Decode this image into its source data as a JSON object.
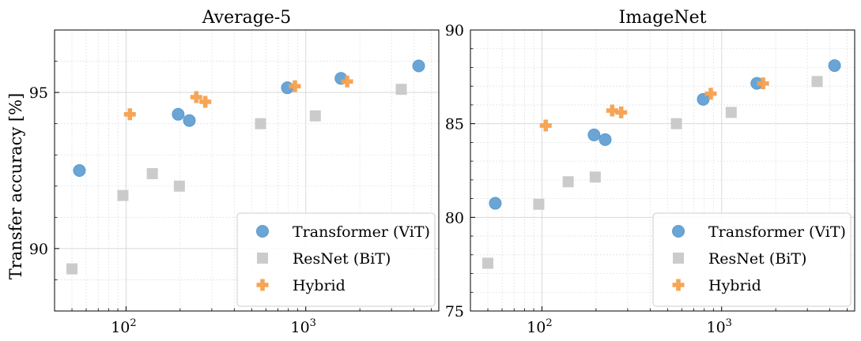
{
  "chart_data": [
    {
      "type": "scatter",
      "title": "Average-5",
      "xlabel": "",
      "ylabel": "Transfer accuracy [%]",
      "xscale": "log",
      "xlim": [
        40,
        5500
      ],
      "ylim": [
        88,
        97
      ],
      "yticks": [
        90,
        95
      ],
      "xticks": [
        {
          "value": 100,
          "base": "10",
          "exp": "2"
        },
        {
          "value": 1000,
          "base": "10",
          "exp": "3"
        }
      ],
      "grid": true,
      "legend": "bottom-right",
      "series": [
        {
          "name": "Transformer (ViT)",
          "marker": "circle",
          "color": "#5b9bd0",
          "points": [
            [
              55,
              92.5
            ],
            [
              195,
              94.3
            ],
            [
              225,
              94.1
            ],
            [
              790,
              95.15
            ],
            [
              1570,
              95.45
            ],
            [
              4250,
              95.85
            ]
          ]
        },
        {
          "name": "ResNet (BiT)",
          "marker": "square",
          "color": "#c8c8c8",
          "points": [
            [
              50,
              89.35
            ],
            [
              96,
              91.7
            ],
            [
              140,
              92.4
            ],
            [
              198,
              92.0
            ],
            [
              560,
              94.0
            ],
            [
              1130,
              94.25
            ],
            [
              3400,
              95.1
            ]
          ]
        },
        {
          "name": "Hybrid",
          "marker": "plus",
          "color": "#f6a04d",
          "points": [
            [
              105,
              94.3
            ],
            [
              246,
              94.85
            ],
            [
              276,
              94.7
            ],
            [
              870,
              95.2
            ],
            [
              1700,
              95.35
            ]
          ]
        }
      ]
    },
    {
      "type": "scatter",
      "title": "ImageNet",
      "xlabel": "",
      "ylabel": "",
      "xscale": "log",
      "xlim": [
        40,
        5500
      ],
      "ylim": [
        75,
        90
      ],
      "yticks": [
        75,
        80,
        85,
        90
      ],
      "xticks": [
        {
          "value": 100,
          "base": "10",
          "exp": "2"
        },
        {
          "value": 1000,
          "base": "10",
          "exp": "3"
        }
      ],
      "grid": true,
      "legend": "bottom-right",
      "series": [
        {
          "name": "Transformer (ViT)",
          "marker": "circle",
          "color": "#5b9bd0",
          "points": [
            [
              55,
              80.75
            ],
            [
              195,
              84.4
            ],
            [
              225,
              84.15
            ],
            [
              790,
              86.3
            ],
            [
              1570,
              87.15
            ],
            [
              4250,
              88.1
            ]
          ]
        },
        {
          "name": "ResNet (BiT)",
          "marker": "square",
          "color": "#c8c8c8",
          "points": [
            [
              50,
              77.55
            ],
            [
              96,
              80.7
            ],
            [
              140,
              81.9
            ],
            [
              198,
              82.15
            ],
            [
              560,
              85.0
            ],
            [
              1130,
              85.6
            ],
            [
              3400,
              87.25
            ]
          ]
        },
        {
          "name": "Hybrid",
          "marker": "plus",
          "color": "#f6a04d",
          "points": [
            [
              105,
              84.9
            ],
            [
              246,
              85.7
            ],
            [
              276,
              85.6
            ],
            [
              870,
              86.6
            ],
            [
              1700,
              87.15
            ]
          ]
        }
      ]
    }
  ]
}
